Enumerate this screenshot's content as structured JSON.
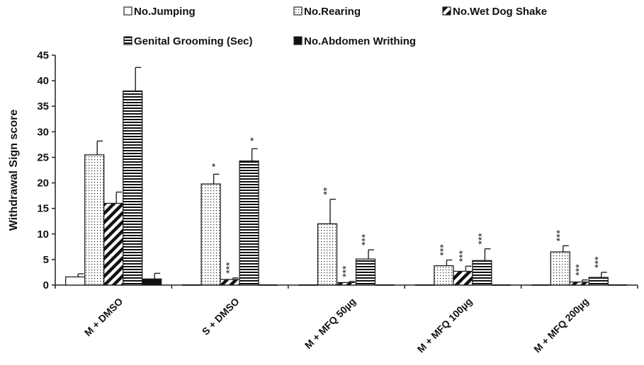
{
  "chart_data": {
    "type": "bar",
    "title": "",
    "xlabel": "",
    "ylabel": "Withdrawal Sign score",
    "ylim": [
      0,
      45
    ],
    "yticks": [
      0,
      5,
      10,
      15,
      20,
      25,
      30,
      35,
      40,
      45
    ],
    "grid": false,
    "legend_position": "top",
    "categories": [
      "M + DMSO",
      "S + DMSO",
      "M + MFQ 50µg",
      "M + MFQ 100µg",
      "M + MFQ 200µg"
    ],
    "series": [
      {
        "name": "No.Jumping",
        "pattern": "white",
        "values": [
          1.6,
          0,
          0,
          0,
          0
        ],
        "errors": [
          0.6,
          0,
          0,
          0,
          0
        ],
        "significance": [
          "",
          "",
          "",
          "",
          ""
        ]
      },
      {
        "name": "No.Rearing",
        "pattern": "dots",
        "values": [
          25.5,
          19.8,
          12.0,
          3.8,
          6.5
        ],
        "errors": [
          2.7,
          1.9,
          4.8,
          1.1,
          1.2
        ],
        "significance": [
          "",
          "*",
          "**",
          "***",
          "***"
        ]
      },
      {
        "name": "No.Wet Dog Shake",
        "pattern": "diagonal",
        "values": [
          16.0,
          1.1,
          0.5,
          2.7,
          0.6
        ],
        "errors": [
          2.2,
          0.3,
          0.2,
          1.0,
          0.4
        ],
        "significance": [
          "",
          "***",
          "***",
          "***",
          "***"
        ]
      },
      {
        "name": "Genital Grooming (Sec)",
        "pattern": "horizontal",
        "values": [
          38.0,
          24.3,
          5.1,
          4.8,
          1.5
        ],
        "errors": [
          4.6,
          2.4,
          1.8,
          2.3,
          1.0
        ],
        "significance": [
          "",
          "*",
          "***",
          "***",
          "***"
        ]
      },
      {
        "name": "No.Abdomen Writhing",
        "pattern": "black",
        "values": [
          1.2,
          0,
          0,
          0,
          0
        ],
        "errors": [
          1.1,
          0,
          0,
          0,
          0
        ],
        "significance": [
          "",
          "",
          "",
          "",
          ""
        ]
      }
    ]
  }
}
